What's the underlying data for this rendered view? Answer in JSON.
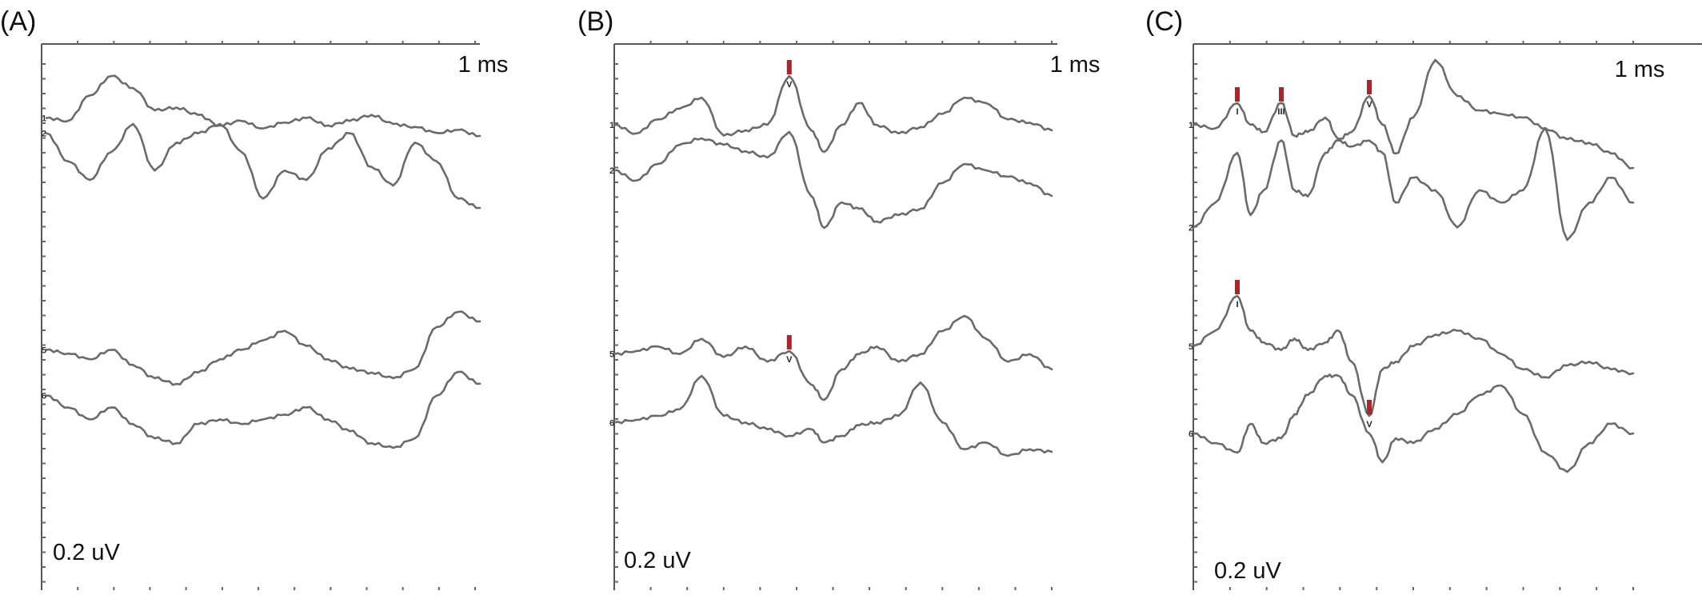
{
  "colors": {
    "trace": "#6a6a6a",
    "axis": "#555555",
    "marker": "#a5262b"
  },
  "chart_data": [
    {
      "type": "line",
      "panel": "(A)",
      "scale_x": "1 ms",
      "scale_y": "0.2 uV",
      "xlim": [
        0,
        10
      ],
      "ylim": [
        0,
        10
      ],
      "grid": false,
      "series": [
        {
          "name": "1",
          "x": [
            0,
            0.5,
            1,
            1.5,
            2,
            2.5,
            3,
            3.5,
            4,
            4.5,
            5,
            5.5,
            6,
            6.5,
            7,
            7.5,
            8,
            8.5,
            9,
            9.5,
            10
          ],
          "y": [
            8.9,
            8.88,
            9.05,
            9.18,
            9.1,
            8.95,
            8.97,
            8.92,
            8.85,
            8.88,
            8.83,
            8.87,
            8.9,
            8.85,
            8.88,
            8.92,
            8.86,
            8.84,
            8.8,
            8.82,
            8.78
          ]
        },
        {
          "name": "2",
          "x": [
            0,
            0.5,
            1,
            1.5,
            2,
            2.5,
            3,
            3.5,
            4,
            4.5,
            5,
            5.5,
            6,
            6.5,
            7,
            7.5,
            8,
            8.5,
            9,
            9.5,
            10
          ],
          "y": [
            7.9,
            7.75,
            7.65,
            7.8,
            7.95,
            7.7,
            7.85,
            7.9,
            7.95,
            7.8,
            7.55,
            7.7,
            7.65,
            7.82,
            7.9,
            7.72,
            7.62,
            7.85,
            7.75,
            7.55,
            7.5
          ]
        },
        {
          "name": "5",
          "x": [
            0,
            0.5,
            1,
            1.5,
            2,
            2.5,
            3,
            3.5,
            4,
            4.5,
            5,
            5.5,
            6,
            6.5,
            7,
            7.5,
            8,
            8.5,
            9,
            9.5,
            10
          ],
          "y": [
            4.3,
            4.28,
            4.25,
            4.3,
            4.22,
            4.15,
            4.12,
            4.18,
            4.25,
            4.3,
            4.35,
            4.4,
            4.32,
            4.25,
            4.2,
            4.18,
            4.15,
            4.2,
            4.42,
            4.5,
            4.45
          ]
        },
        {
          "name": "6",
          "x": [
            0,
            0.5,
            1,
            1.5,
            2,
            2.5,
            3,
            3.5,
            4,
            4.5,
            5,
            5.5,
            6,
            6.5,
            7,
            7.5,
            8,
            8.5,
            9,
            9.5,
            10
          ],
          "y": [
            3.4,
            3.35,
            3.3,
            3.35,
            3.28,
            3.22,
            3.2,
            3.28,
            3.3,
            3.28,
            3.3,
            3.32,
            3.35,
            3.3,
            3.25,
            3.2,
            3.18,
            3.22,
            3.4,
            3.5,
            3.45
          ]
        }
      ],
      "markers": []
    },
    {
      "type": "line",
      "panel": "(B)",
      "scale_x": "1 ms",
      "scale_y": "0.2 uV",
      "xlim": [
        0,
        10
      ],
      "ylim": [
        0,
        10
      ],
      "grid": false,
      "series": [
        {
          "name": "1",
          "x": [
            0,
            0.5,
            1,
            1.5,
            2,
            2.5,
            3,
            3.5,
            4,
            4.5,
            4.8,
            5.2,
            5.6,
            6,
            6.5,
            7,
            7.5,
            8,
            8.5,
            9,
            9.5,
            10
          ],
          "y": [
            8.8,
            8.72,
            8.85,
            8.95,
            9.05,
            8.7,
            8.75,
            8.8,
            9.25,
            8.75,
            8.55,
            8.8,
            9.0,
            8.8,
            8.72,
            8.78,
            8.9,
            9.05,
            9.0,
            8.85,
            8.82,
            8.75
          ]
        },
        {
          "name": "2",
          "x": [
            0,
            0.5,
            1,
            1.5,
            2,
            2.5,
            3,
            3.5,
            4,
            4.5,
            4.8,
            5.2,
            5.6,
            6,
            6.5,
            7,
            7.5,
            8,
            8.5,
            9,
            9.5,
            10
          ],
          "y": [
            7.8,
            7.72,
            7.85,
            8.0,
            8.05,
            8.0,
            7.95,
            7.9,
            8.1,
            7.6,
            7.35,
            7.55,
            7.5,
            7.4,
            7.45,
            7.5,
            7.7,
            7.85,
            7.8,
            7.75,
            7.7,
            7.6
          ]
        },
        {
          "name": "5",
          "x": [
            0,
            0.5,
            1,
            1.5,
            2,
            2.5,
            3,
            3.5,
            4,
            4.5,
            4.8,
            5.2,
            5.6,
            6,
            6.5,
            7,
            7.5,
            8,
            8.5,
            9,
            9.5,
            10
          ],
          "y": [
            4.2,
            4.22,
            4.25,
            4.2,
            4.3,
            4.18,
            4.25,
            4.15,
            4.22,
            4.0,
            3.9,
            4.1,
            4.2,
            4.25,
            4.15,
            4.2,
            4.35,
            4.45,
            4.3,
            4.15,
            4.2,
            4.1
          ]
        },
        {
          "name": "6",
          "x": [
            0,
            0.5,
            1,
            1.5,
            2,
            2.5,
            3,
            3.5,
            4,
            4.5,
            4.8,
            5.2,
            5.6,
            6,
            6.5,
            7,
            7.5,
            8,
            8.5,
            9,
            9.5,
            10
          ],
          "y": [
            3.2,
            3.22,
            3.25,
            3.3,
            3.55,
            3.25,
            3.2,
            3.15,
            3.1,
            3.15,
            3.05,
            3.1,
            3.18,
            3.2,
            3.25,
            3.5,
            3.2,
            3.0,
            3.05,
            2.95,
            3.0,
            2.98
          ]
        }
      ],
      "markers": [
        {
          "series": "1",
          "x": 4.0,
          "label": "V"
        },
        {
          "series": "5",
          "x": 4.0,
          "label": "V"
        }
      ]
    },
    {
      "type": "line",
      "panel": "(C)",
      "scale_x": "1 ms",
      "scale_y": "0.2 uV",
      "xlim": [
        0,
        10
      ],
      "ylim": [
        0,
        10
      ],
      "grid": false,
      "series": [
        {
          "name": "1",
          "x": [
            0,
            0.5,
            1,
            1.3,
            1.6,
            2,
            2.3,
            2.6,
            3,
            3.3,
            3.6,
            4,
            4.3,
            4.6,
            5,
            5.5,
            6,
            6.5,
            7,
            7.5,
            8,
            8.5,
            9,
            9.5,
            10
          ],
          "y": [
            8.8,
            8.75,
            9.1,
            8.8,
            8.7,
            9.1,
            8.65,
            8.7,
            8.9,
            8.6,
            8.7,
            9.2,
            8.8,
            8.4,
            8.9,
            9.7,
            9.2,
            9.0,
            8.95,
            8.9,
            8.75,
            8.6,
            8.55,
            8.4,
            8.2
          ]
        },
        {
          "name": "2",
          "x": [
            0,
            0.5,
            1,
            1.3,
            1.6,
            2,
            2.3,
            2.6,
            3,
            3.3,
            3.6,
            4,
            4.3,
            4.6,
            5,
            5.5,
            6,
            6.5,
            7,
            7.5,
            8,
            8.5,
            9,
            9.5,
            10
          ],
          "y": [
            7.2,
            7.4,
            7.8,
            7.3,
            7.5,
            7.9,
            7.5,
            7.45,
            7.8,
            7.9,
            7.85,
            7.9,
            7.8,
            7.4,
            7.6,
            7.5,
            7.2,
            7.5,
            7.4,
            7.5,
            8.0,
            7.1,
            7.4,
            7.6,
            7.4
          ]
        },
        {
          "name": "5",
          "x": [
            0,
            0.5,
            1,
            1.3,
            1.6,
            2,
            2.3,
            2.6,
            3,
            3.3,
            3.6,
            4,
            4.3,
            4.6,
            5,
            5.5,
            6,
            6.5,
            7,
            7.5,
            8,
            8.5,
            9,
            9.5,
            10
          ],
          "y": [
            4.1,
            4.3,
            4.75,
            4.3,
            4.15,
            4.05,
            4.2,
            4.05,
            4.15,
            4.3,
            3.9,
            3.2,
            3.8,
            3.9,
            4.1,
            4.25,
            4.3,
            4.2,
            4.0,
            3.8,
            3.7,
            3.85,
            3.9,
            3.8,
            3.75
          ]
        },
        {
          "name": "6",
          "x": [
            0,
            0.5,
            1,
            1.3,
            1.6,
            2,
            2.3,
            2.6,
            3,
            3.3,
            3.6,
            4,
            4.3,
            4.6,
            5,
            5.5,
            6,
            6.5,
            7,
            7.5,
            8,
            8.5,
            9,
            9.5,
            10
          ],
          "y": [
            2.6,
            2.5,
            2.4,
            2.7,
            2.5,
            2.55,
            2.8,
            3.0,
            3.2,
            3.2,
            3.0,
            2.6,
            2.3,
            2.55,
            2.5,
            2.65,
            2.8,
            3.0,
            3.1,
            2.8,
            2.4,
            2.2,
            2.5,
            2.7,
            2.6
          ]
        }
      ],
      "markers": [
        {
          "series": "1",
          "x": 1.0,
          "label": "I"
        },
        {
          "series": "1",
          "x": 2.0,
          "label": "III"
        },
        {
          "series": "1",
          "x": 4.0,
          "label": "V"
        },
        {
          "series": "5",
          "x": 1.0,
          "label": "I"
        },
        {
          "series": "5",
          "x": 4.0,
          "label": "V"
        }
      ]
    }
  ]
}
